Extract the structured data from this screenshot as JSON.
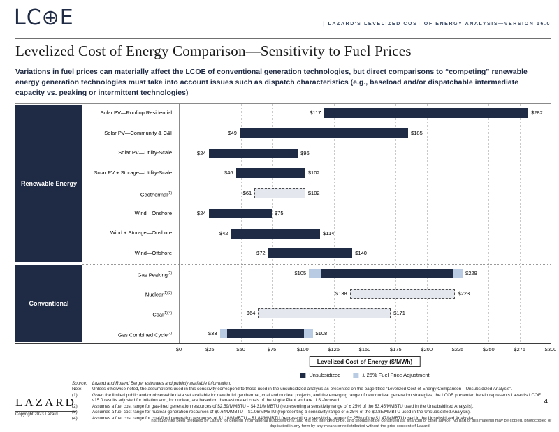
{
  "header": {
    "logo_text": "LC⊕E",
    "caption": "|   LAZARD'S LEVELIZED COST OF ENERGY ANALYSIS—VERSION 16.0"
  },
  "title": "Levelized Cost of Energy Comparison—Sensitivity to Fuel Prices",
  "subtitle": "Variations in fuel prices can materially affect the LCOE of conventional generation technologies, but direct comparisons to “competing” renewable energy generation technologies must take into account issues such as dispatch characteristics (e.g., baseload and/or dispatchable intermediate capacity vs. peaking or intermittent technologies)",
  "chart_data": {
    "type": "range-bar",
    "xlabel": "Levelized Cost of Energy ($/MWh)",
    "xlim": [
      0,
      300
    ],
    "xtick_step": 25,
    "xticks": [
      "$0",
      "$25",
      "$50",
      "$75",
      "$100",
      "$125",
      "$150",
      "$175",
      "$200",
      "$225",
      "$250",
      "$275",
      "$300"
    ],
    "grid": "vertical-dotted",
    "legend_position": "bottom",
    "legend": [
      {
        "label": "Unsubsidized",
        "swatch": "solid"
      },
      {
        "label": "± 25% Fuel Price Adjustment",
        "swatch": "fuel"
      }
    ],
    "colors": {
      "solid": "#1f2a44",
      "fuel_adjustment": "#b9cbe2",
      "dashed_fill": "#e4e8ee"
    },
    "groups": [
      {
        "name": "Renewable Energy",
        "rows": [
          {
            "label": "Solar PV—Rooftop Residential",
            "sup": "",
            "low": 117,
            "high": 282,
            "style": "solid"
          },
          {
            "label": "Solar PV—Community & C&I",
            "sup": "",
            "low": 49,
            "high": 185,
            "style": "solid"
          },
          {
            "label": "Solar PV—Utility-Scale",
            "sup": "",
            "low": 24,
            "high": 96,
            "style": "solid"
          },
          {
            "label": "Solar PV + Storage—Utility-Scale",
            "sup": "",
            "low": 46,
            "high": 102,
            "style": "solid"
          },
          {
            "label": "Geothermal",
            "sup": "(1)",
            "low": 61,
            "high": 102,
            "style": "dashed"
          },
          {
            "label": "Wind—Onshore",
            "sup": "",
            "low": 24,
            "high": 75,
            "style": "solid"
          },
          {
            "label": "Wind + Storage—Onshore",
            "sup": "",
            "low": 42,
            "high": 114,
            "style": "solid"
          },
          {
            "label": "Wind—Offshore",
            "sup": "",
            "low": 72,
            "high": 140,
            "style": "solid"
          }
        ]
      },
      {
        "name": "Conventional",
        "rows": [
          {
            "label": "Gas Peaking",
            "sup": "(2)",
            "low": 105,
            "high": 229,
            "style": "fuel",
            "inner_low": 115,
            "inner_high": 221
          },
          {
            "label": "Nuclear",
            "sup": "(1)(3)",
            "low": 138,
            "high": 223,
            "style": "dashed"
          },
          {
            "label": "Coal",
            "sup": "(1)(4)",
            "low": 64,
            "high": 171,
            "style": "dashed"
          },
          {
            "label": "Gas Combined Cycle",
            "sup": "(2)",
            "low": 33,
            "high": 108,
            "style": "fuel",
            "inner_low": 39,
            "inner_high": 101
          }
        ]
      }
    ]
  },
  "footnotes": {
    "items": [
      {
        "label": "Source:",
        "text": "Lazard and Roland Berger estimates and publicly available information."
      },
      {
        "label": "Note:",
        "text": "Unless otherwise noted, the assumptions used in this sensitivity correspond to those used in the unsubsidized analysis as presented on the page titled “Levelized Cost of Energy Comparison—Unsubsidized Analysis”."
      },
      {
        "label": "(1)",
        "text": "Given the limited public and/or observable data set available for new-build geothermal, coal and nuclear projects, and the emerging range of new nuclear generation strategies, the LCOE presented herein represents Lazard's LCOE v15.0 results adjusted for inflation and, for nuclear, are based on then-estimated costs of the Vogtle Plant and are U.S.-focused."
      },
      {
        "label": "(2)",
        "text": "Assumes a fuel cost range for gas-fired generation resources of $2.59/MMBTU – $4.31/MMBTU (representing a sensitivity range of ± 25% of the $3.45/MMBTU used in the Unsubsidized Analysis)."
      },
      {
        "label": "(3)",
        "text": "Assumes a fuel cost range for nuclear generation resources of $0.64/MMBTU – $1.06/MMBTU (representing a sensitivity range of ± 25% of the $0.85/MMBTU used in the Unsubsidized Analysis)."
      },
      {
        "label": "(4)",
        "text": "Assumes a fuel cost range for coal-fired generation resources of $1.10/MMBTU – $1.84/MMBTU (representing a sensitivity range of ± 25% of the $1.47/MMBTU used in the Unsubsidized Analysis)."
      }
    ]
  },
  "footer": {
    "brand": "LAZARD",
    "copyright": "Copyright 2023 Lazard",
    "page_number": "4",
    "disclaimer": "This study has been prepared by Lazard for general informational purposes only, and it is not intended to be, and should not be construed as, financial or other advice. No part of this material may be copied, photocopied or duplicated in any form by any means or redistributed without the prior consent of Lazard."
  }
}
